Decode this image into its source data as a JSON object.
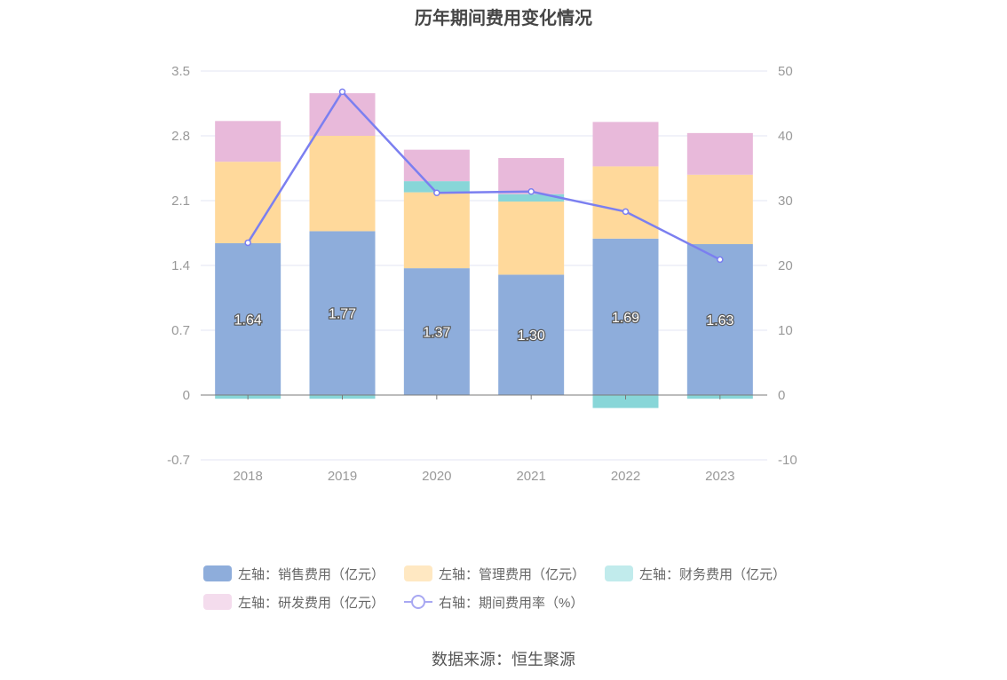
{
  "title": "历年期间费用变化情况",
  "source": "数据来源：恒生聚源",
  "colors": {
    "sales": "#8eaddb",
    "mgmt": "#ffd99b",
    "finance": "#88d6d8",
    "rd": "#e8b9da",
    "rate_line": "#7b7ff0",
    "grid": "#e3e5f3",
    "axis_text": "#999999"
  },
  "chart_data": {
    "type": "bar",
    "categories": [
      "2018",
      "2019",
      "2020",
      "2021",
      "2022",
      "2023"
    ],
    "left_axis": {
      "min": -0.7,
      "max": 3.5,
      "ticks": [
        "3.5",
        "2.8",
        "2.1",
        "1.4",
        "0.7",
        "0",
        "-0.7"
      ]
    },
    "right_axis": {
      "min": -10,
      "max": 50,
      "ticks": [
        "50",
        "40",
        "30",
        "20",
        "10",
        "0",
        "-10"
      ]
    },
    "series": [
      {
        "name": "左轴：销售费用（亿元）",
        "key": "sales",
        "axis": "left",
        "stack": true,
        "values": [
          1.64,
          1.77,
          1.37,
          1.3,
          1.69,
          1.63
        ],
        "labels": [
          "1.64",
          "1.77",
          "1.37",
          "1.30",
          "1.69",
          "1.63"
        ]
      },
      {
        "name": "左轴：管理费用（亿元）",
        "key": "mgmt",
        "axis": "left",
        "stack": true,
        "values": [
          0.88,
          1.03,
          0.82,
          0.79,
          0.78,
          0.75
        ]
      },
      {
        "name": "左轴：财务费用（亿元）",
        "key": "finance",
        "axis": "left",
        "stack": true,
        "values": [
          -0.04,
          -0.04,
          0.12,
          0.08,
          -0.14,
          -0.04
        ]
      },
      {
        "name": "左轴：研发费用（亿元）",
        "key": "rd",
        "axis": "left",
        "stack": true,
        "values": [
          0.44,
          0.46,
          0.34,
          0.39,
          0.48,
          0.45
        ]
      },
      {
        "name": "右轴：期间费用率（%）",
        "key": "rate",
        "axis": "right",
        "type": "line",
        "values": [
          23.5,
          46.8,
          31.2,
          31.4,
          28.3,
          20.9
        ]
      }
    ]
  }
}
